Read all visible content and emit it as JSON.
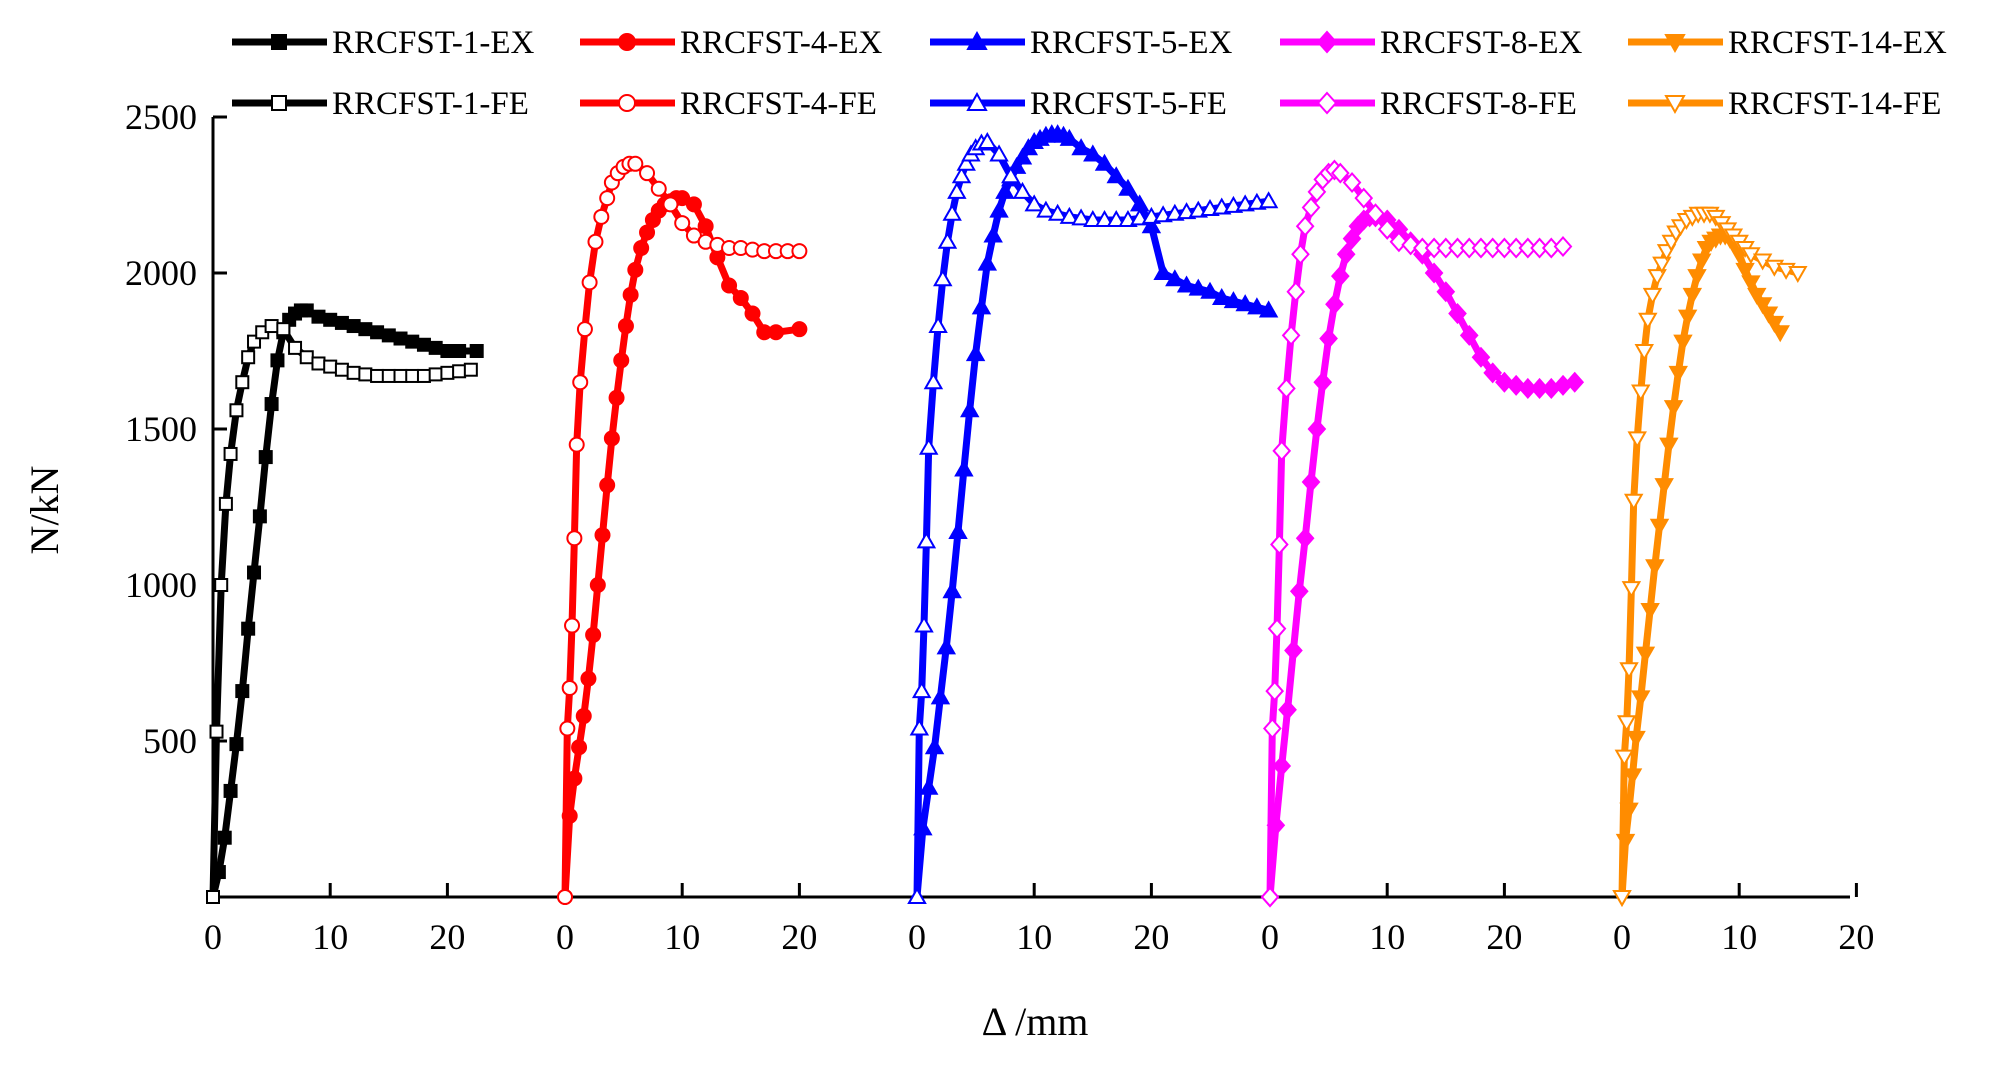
{
  "chart_data": {
    "type": "line",
    "xlabel": "Δ /mm",
    "ylabel": "N/kN",
    "ylim": [
      0,
      2500
    ],
    "yticks": [
      500,
      1000,
      1500,
      2000,
      2500
    ],
    "grid": false,
    "legend_position": "top",
    "panels": [
      {
        "xlim": [
          0,
          30
        ],
        "xticks": [
          0,
          10,
          20
        ]
      },
      {
        "xlim": [
          0,
          30
        ],
        "xticks": [
          0,
          10,
          20
        ]
      },
      {
        "xlim": [
          0,
          30
        ],
        "xticks": [
          0,
          10,
          20
        ]
      },
      {
        "xlim": [
          0,
          30
        ],
        "xticks": [
          0,
          10,
          20
        ]
      },
      {
        "xlim": [
          0,
          20
        ],
        "xticks": [
          0,
          10,
          20
        ]
      }
    ],
    "series": [
      {
        "name": "RRCFST-1-EX",
        "panel": 0,
        "color": "#000000",
        "marker": "square",
        "filled": true,
        "x": [
          0,
          0.5,
          1,
          1.5,
          2,
          2.5,
          3,
          3.5,
          4,
          4.5,
          5,
          5.5,
          6,
          6.5,
          7,
          7.5,
          8,
          9,
          10,
          11,
          12,
          13,
          14,
          15,
          16,
          17,
          18,
          19,
          20,
          21,
          22.5
        ],
        "y": [
          0,
          80,
          190,
          340,
          490,
          660,
          860,
          1040,
          1220,
          1410,
          1580,
          1720,
          1810,
          1850,
          1870,
          1880,
          1880,
          1860,
          1850,
          1840,
          1830,
          1820,
          1810,
          1800,
          1790,
          1780,
          1770,
          1760,
          1750,
          1750,
          1750
        ]
      },
      {
        "name": "RRCFST-1-FE",
        "panel": 0,
        "color": "#000000",
        "marker": "square",
        "filled": false,
        "x": [
          0,
          0.3,
          0.7,
          1.1,
          1.5,
          2,
          2.5,
          3,
          3.5,
          4.2,
          5,
          6,
          7,
          8,
          9,
          10,
          11,
          12,
          13,
          14,
          15,
          16,
          17,
          18,
          19,
          20,
          21,
          22
        ],
        "y": [
          0,
          530,
          1000,
          1260,
          1420,
          1560,
          1650,
          1730,
          1780,
          1810,
          1830,
          1820,
          1760,
          1730,
          1710,
          1700,
          1690,
          1680,
          1675,
          1670,
          1670,
          1670,
          1670,
          1670,
          1675,
          1680,
          1685,
          1690
        ]
      },
      {
        "name": "RRCFST-4-EX",
        "panel": 1,
        "color": "#ff0000",
        "marker": "circle",
        "filled": true,
        "x": [
          0,
          0.4,
          0.8,
          1.2,
          1.6,
          2,
          2.4,
          2.8,
          3.2,
          3.6,
          4,
          4.4,
          4.8,
          5.2,
          5.6,
          6,
          6.5,
          7,
          7.5,
          8,
          8.5,
          9,
          9.5,
          10,
          11,
          12,
          13,
          14,
          15,
          16,
          17,
          18,
          20
        ],
        "y": [
          0,
          260,
          380,
          480,
          580,
          700,
          840,
          1000,
          1160,
          1320,
          1470,
          1600,
          1720,
          1830,
          1930,
          2010,
          2080,
          2130,
          2170,
          2200,
          2220,
          2230,
          2240,
          2240,
          2220,
          2150,
          2050,
          1960,
          1920,
          1870,
          1810,
          1810,
          1820
        ]
      },
      {
        "name": "RRCFST-4-FE",
        "panel": 1,
        "color": "#ff0000",
        "marker": "circle",
        "filled": false,
        "x": [
          0,
          0.2,
          0.4,
          0.6,
          0.8,
          1,
          1.3,
          1.7,
          2.1,
          2.6,
          3.1,
          3.6,
          4,
          4.5,
          5,
          5.5,
          6,
          7,
          8,
          9,
          10,
          11,
          12,
          13,
          14,
          15,
          16,
          17,
          18,
          19,
          20
        ],
        "y": [
          0,
          540,
          670,
          870,
          1150,
          1450,
          1650,
          1820,
          1970,
          2100,
          2180,
          2240,
          2290,
          2320,
          2340,
          2350,
          2350,
          2320,
          2270,
          2220,
          2160,
          2120,
          2100,
          2090,
          2080,
          2080,
          2075,
          2070,
          2070,
          2070,
          2070
        ]
      },
      {
        "name": "RRCFST-5-EX",
        "panel": 2,
        "color": "#0000ff",
        "marker": "triangle",
        "filled": true,
        "x": [
          0,
          0.5,
          1,
          1.5,
          2,
          2.5,
          3,
          3.5,
          4,
          4.5,
          5,
          5.5,
          6,
          6.5,
          7,
          7.5,
          8,
          8.5,
          9,
          9.5,
          10,
          10.5,
          11,
          11.5,
          12,
          12.5,
          13,
          14,
          15,
          16,
          17,
          18,
          19,
          20,
          21,
          22,
          23,
          24,
          25,
          26,
          27,
          28,
          29,
          30
        ],
        "y": [
          0,
          220,
          350,
          480,
          640,
          800,
          980,
          1170,
          1370,
          1560,
          1740,
          1890,
          2030,
          2120,
          2200,
          2260,
          2300,
          2340,
          2370,
          2400,
          2420,
          2430,
          2440,
          2445,
          2445,
          2440,
          2430,
          2400,
          2380,
          2350,
          2310,
          2270,
          2220,
          2150,
          2000,
          1980,
          1960,
          1950,
          1940,
          1920,
          1910,
          1900,
          1890,
          1880
        ]
      },
      {
        "name": "RRCFST-5-FE",
        "panel": 2,
        "color": "#0000ff",
        "marker": "triangle",
        "filled": false,
        "x": [
          0,
          0.2,
          0.4,
          0.6,
          0.8,
          1,
          1.4,
          1.8,
          2.2,
          2.6,
          3,
          3.4,
          3.8,
          4.2,
          4.6,
          5,
          5.5,
          6,
          7,
          8,
          9,
          10,
          11,
          12,
          13,
          14,
          15,
          16,
          17,
          18,
          19,
          20,
          21,
          22,
          23,
          24,
          25,
          26,
          27,
          28,
          29,
          30
        ],
        "y": [
          0,
          540,
          660,
          870,
          1140,
          1440,
          1650,
          1830,
          1980,
          2100,
          2190,
          2260,
          2310,
          2350,
          2380,
          2400,
          2415,
          2420,
          2380,
          2310,
          2260,
          2220,
          2200,
          2190,
          2180,
          2175,
          2170,
          2170,
          2170,
          2170,
          2175,
          2180,
          2185,
          2190,
          2195,
          2200,
          2205,
          2210,
          2215,
          2220,
          2225,
          2230
        ]
      },
      {
        "name": "RRCFST-8-EX",
        "panel": 3,
        "color": "#ff00ff",
        "marker": "diamond",
        "filled": true,
        "x": [
          0,
          0.5,
          1,
          1.5,
          2,
          2.5,
          3,
          3.5,
          4,
          4.5,
          5,
          5.5,
          6,
          6.5,
          7,
          7.5,
          8,
          8.5,
          9,
          10,
          11,
          12,
          13,
          14,
          15,
          16,
          17,
          18,
          19,
          20,
          21,
          22,
          23,
          24,
          25,
          26
        ],
        "y": [
          0,
          230,
          420,
          600,
          790,
          980,
          1150,
          1330,
          1500,
          1650,
          1790,
          1900,
          1990,
          2060,
          2110,
          2150,
          2170,
          2180,
          2180,
          2170,
          2140,
          2100,
          2060,
          2000,
          1940,
          1870,
          1800,
          1730,
          1680,
          1650,
          1640,
          1630,
          1630,
          1630,
          1640,
          1650
        ]
      },
      {
        "name": "RRCFST-8-FE",
        "panel": 3,
        "color": "#ff00ff",
        "marker": "diamond",
        "filled": false,
        "x": [
          0,
          0.2,
          0.4,
          0.6,
          0.8,
          1,
          1.4,
          1.8,
          2.2,
          2.6,
          3,
          3.5,
          4,
          4.5,
          5,
          5.5,
          6,
          7,
          8,
          9,
          10,
          11,
          12,
          13,
          14,
          15,
          16,
          17,
          18,
          19,
          20,
          21,
          22,
          23,
          24,
          25
        ],
        "y": [
          0,
          540,
          660,
          860,
          1130,
          1430,
          1630,
          1800,
          1940,
          2060,
          2150,
          2210,
          2260,
          2300,
          2320,
          2330,
          2320,
          2290,
          2240,
          2190,
          2140,
          2100,
          2090,
          2080,
          2080,
          2080,
          2080,
          2080,
          2080,
          2080,
          2080,
          2080,
          2080,
          2080,
          2080,
          2085
        ]
      },
      {
        "name": "RRCFST-14-EX",
        "panel": 4,
        "color": "#ff8c00",
        "marker": "triangle-down",
        "filled": true,
        "x": [
          0,
          0.3,
          0.6,
          0.9,
          1.2,
          1.6,
          2,
          2.4,
          2.8,
          3.2,
          3.6,
          4,
          4.4,
          4.8,
          5.2,
          5.6,
          6,
          6.4,
          6.8,
          7.2,
          7.6,
          8,
          8.4,
          8.8,
          9.2,
          9.6,
          10,
          10.5,
          11,
          11.5,
          12,
          12.5,
          13,
          13.5
        ],
        "y": [
          0,
          180,
          280,
          390,
          510,
          640,
          780,
          920,
          1060,
          1190,
          1320,
          1450,
          1570,
          1680,
          1780,
          1860,
          1930,
          1990,
          2040,
          2080,
          2100,
          2110,
          2120,
          2120,
          2110,
          2090,
          2060,
          2010,
          1970,
          1930,
          1900,
          1870,
          1840,
          1810
        ]
      },
      {
        "name": "RRCFST-14-FE",
        "panel": 4,
        "color": "#ff8c00",
        "marker": "triangle-down",
        "filled": false,
        "x": [
          0,
          0.2,
          0.4,
          0.6,
          0.8,
          1,
          1.3,
          1.6,
          1.9,
          2.2,
          2.6,
          3,
          3.4,
          3.8,
          4.2,
          4.6,
          5,
          5.5,
          6,
          6.5,
          7,
          7.5,
          8,
          8.5,
          9,
          9.5,
          10,
          10.5,
          11,
          12,
          13,
          14,
          15
        ],
        "y": [
          0,
          450,
          560,
          730,
          990,
          1270,
          1470,
          1620,
          1750,
          1850,
          1930,
          1990,
          2030,
          2070,
          2100,
          2130,
          2150,
          2170,
          2180,
          2190,
          2190,
          2190,
          2180,
          2160,
          2140,
          2120,
          2100,
          2080,
          2060,
          2040,
          2020,
          2010,
          2000
        ]
      }
    ]
  }
}
